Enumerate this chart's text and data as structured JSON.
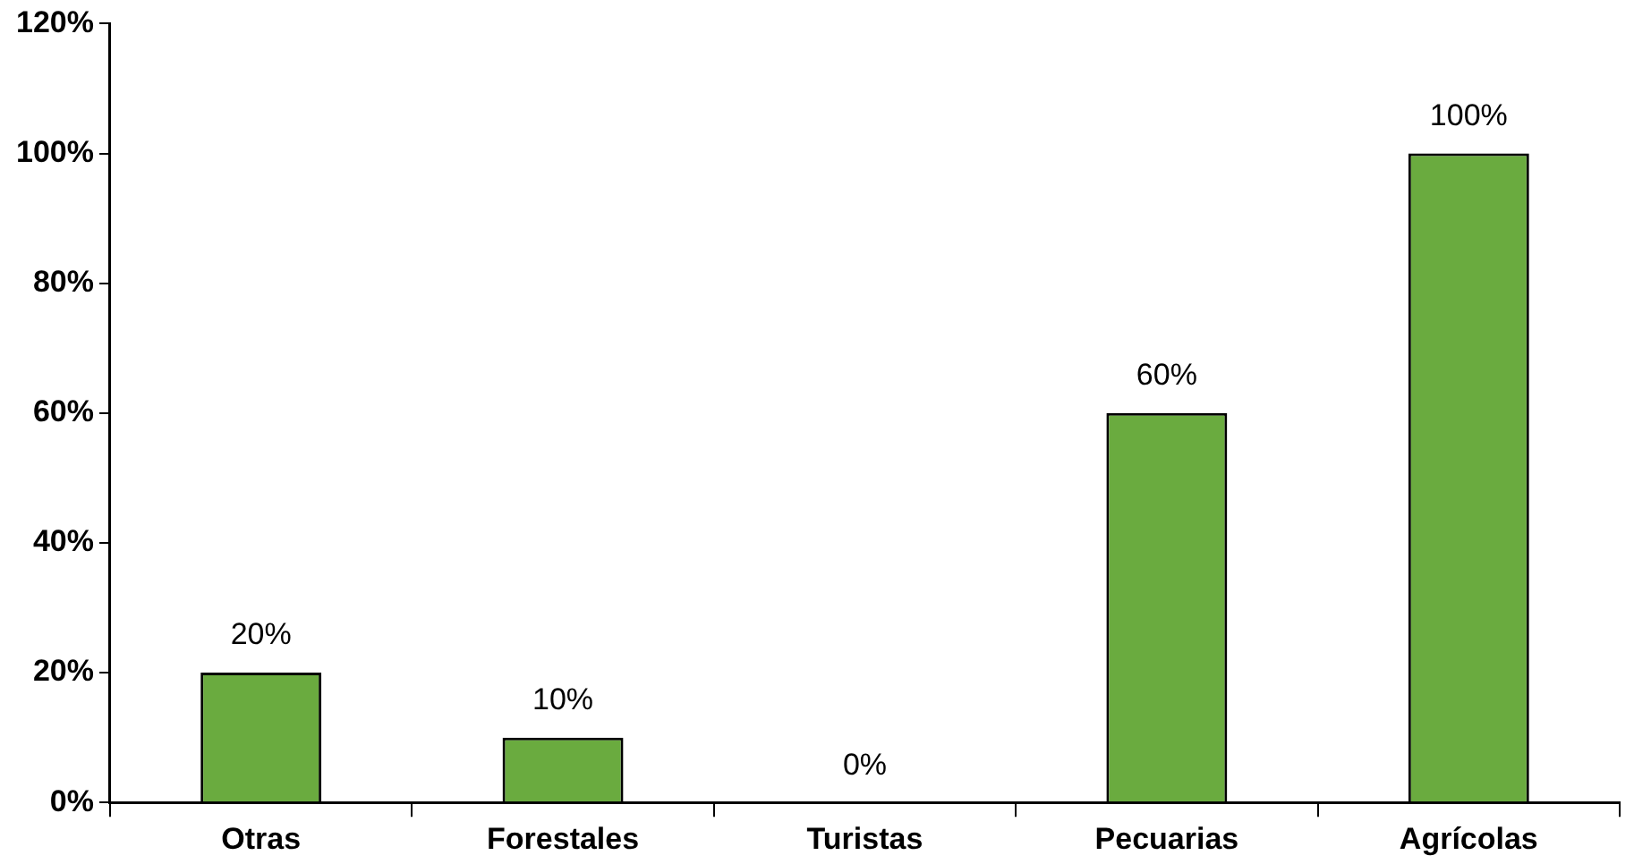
{
  "chart_data": {
    "type": "bar",
    "categories": [
      "Otras",
      "Forestales",
      "Turistas",
      "Pecuarias",
      "Agrícolas"
    ],
    "values": [
      20,
      10,
      0,
      60,
      100
    ],
    "value_labels": [
      "20%",
      "10%",
      "0%",
      "60%",
      "100%"
    ],
    "color": "#6aab3f",
    "ylim": [
      0,
      120
    ],
    "yticks": [
      {
        "value": 0,
        "label": "0%"
      },
      {
        "value": 20,
        "label": "20%"
      },
      {
        "value": 40,
        "label": "40%"
      },
      {
        "value": 60,
        "label": "60%"
      },
      {
        "value": 80,
        "label": "80%"
      },
      {
        "value": 100,
        "label": "100%"
      },
      {
        "value": 120,
        "label": "120%"
      }
    ],
    "grid": false,
    "legend": false
  }
}
